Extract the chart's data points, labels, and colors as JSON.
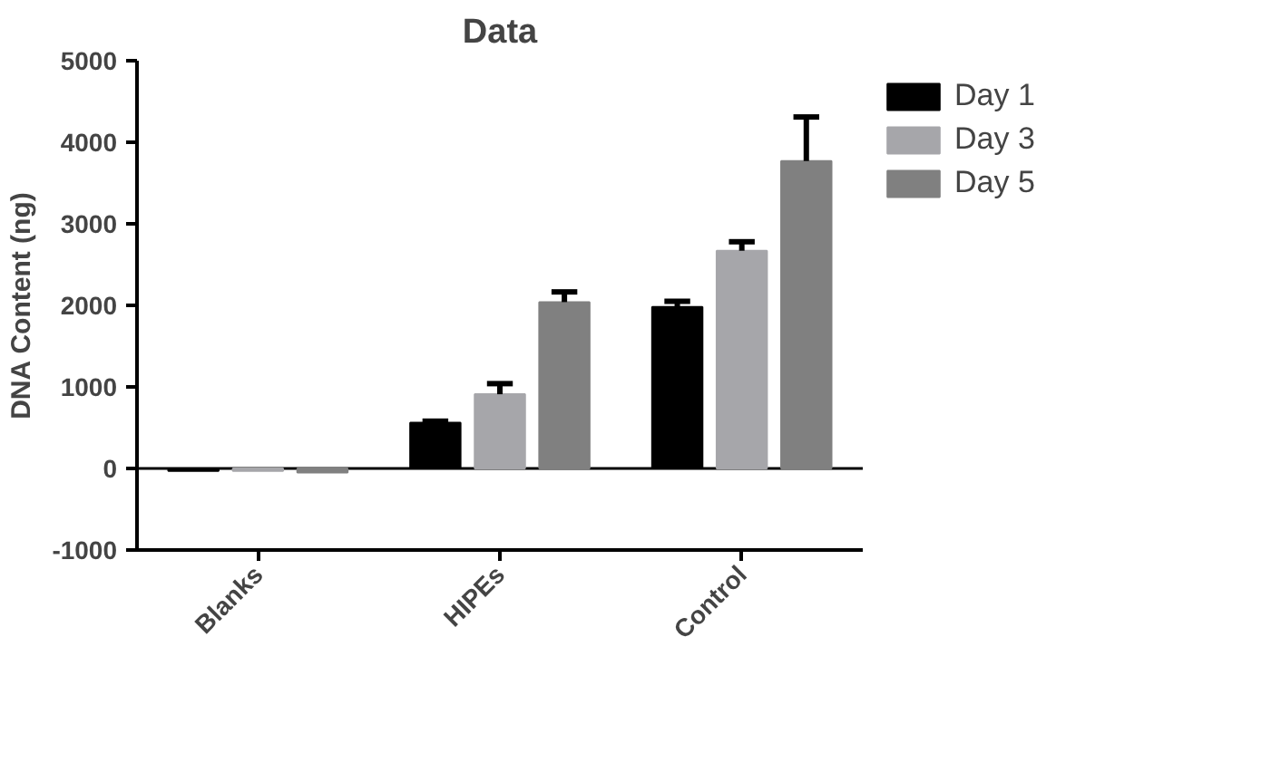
{
  "chart_data": {
    "type": "bar",
    "title": "Data",
    "ylabel": "DNA Content (ng)",
    "categories": [
      "Blanks",
      "HIPEs",
      "Control"
    ],
    "series": [
      {
        "name": "Day 1",
        "color": "#000000",
        "values": [
          -30,
          560,
          1980
        ],
        "errors": [
          null,
          [
            560,
            580
          ],
          [
            1980,
            2050
          ]
        ]
      },
      {
        "name": "Day 3",
        "color": "#a6a6aa",
        "values": [
          -30,
          910,
          2670
        ],
        "errors": [
          null,
          [
            910,
            1040
          ],
          [
            2670,
            2780
          ]
        ]
      },
      {
        "name": "Day 5",
        "color": "#808080",
        "values": [
          -50,
          2040,
          3770
        ],
        "errors": [
          null,
          [
            2040,
            2165
          ],
          [
            3770,
            4310
          ]
        ]
      }
    ],
    "ylim": [
      -1000,
      5000
    ],
    "yticks": [
      -1000,
      0,
      1000,
      2000,
      3000,
      4000,
      5000
    ],
    "ref_lines": [
      {
        "axis": "y",
        "value": 0,
        "label": null,
        "color": "#000000"
      }
    ],
    "grid": false,
    "legend": "top right"
  }
}
